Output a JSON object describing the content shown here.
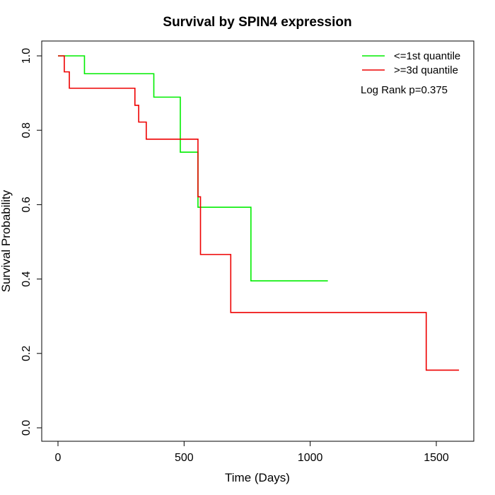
{
  "chart_data": {
    "type": "line",
    "title": "Survival by SPIN4 expression",
    "xlabel": "Time (Days)",
    "ylabel": "Survival Probability",
    "xlim": [
      0,
      1590
    ],
    "ylim": [
      0,
      1
    ],
    "xticks": [
      0,
      500,
      1000,
      1500
    ],
    "yticks": [
      0.0,
      0.2,
      0.4,
      0.6,
      0.8,
      1.0
    ],
    "ytick_labels": [
      "0.0",
      "0.2",
      "0.4",
      "0.6",
      "0.8",
      "1.0"
    ],
    "legend_position": "top-right",
    "annotation": "Log Rank p=0.375",
    "series": [
      {
        "name": "<=1st quantile",
        "color": "#00ee00",
        "step": true,
        "x": [
          0,
          105,
          380,
          485,
          555,
          765,
          1070
        ],
        "y": [
          1.0,
          0.952,
          0.889,
          0.741,
          0.593,
          0.395,
          0.395
        ]
      },
      {
        "name": ">=3d quantile",
        "color": "#ee0000",
        "step": true,
        "x": [
          0,
          25,
          45,
          305,
          320,
          350,
          555,
          565,
          685,
          1460,
          1590
        ],
        "y": [
          1.0,
          0.957,
          0.913,
          0.867,
          0.822,
          0.776,
          0.621,
          0.466,
          0.31,
          0.155,
          0.155
        ]
      }
    ]
  }
}
